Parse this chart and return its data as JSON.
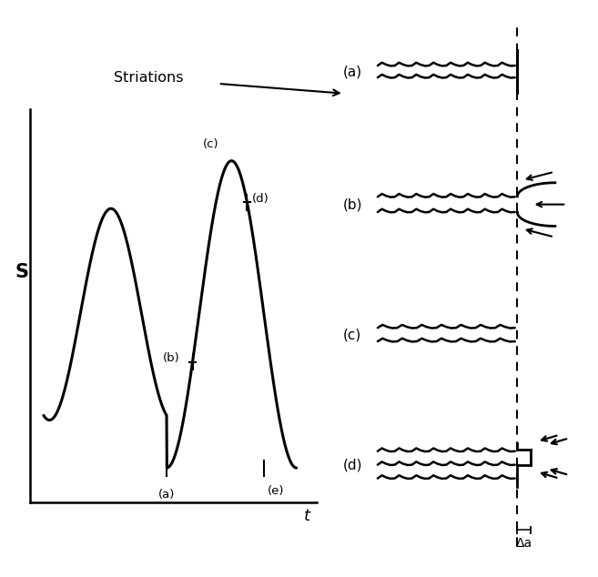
{
  "fig_width": 6.57,
  "fig_height": 6.34,
  "dpi": 100,
  "bg_color": "#ffffff",
  "line_color": "#000000",
  "wave_lw": 2.2,
  "striation_lw": 1.8,
  "crack_lw": 2.0,
  "dashed_line_x": 0.72,
  "section_labels": [
    "(a)",
    "(b)",
    "(c)",
    "(d)"
  ],
  "point_labels": [
    "(a)",
    "(b)",
    "(c)",
    "(d)",
    "(e)"
  ],
  "striations_text": "Striations",
  "delta_a_text": "Δa",
  "s_label": "S",
  "t_label": "t"
}
